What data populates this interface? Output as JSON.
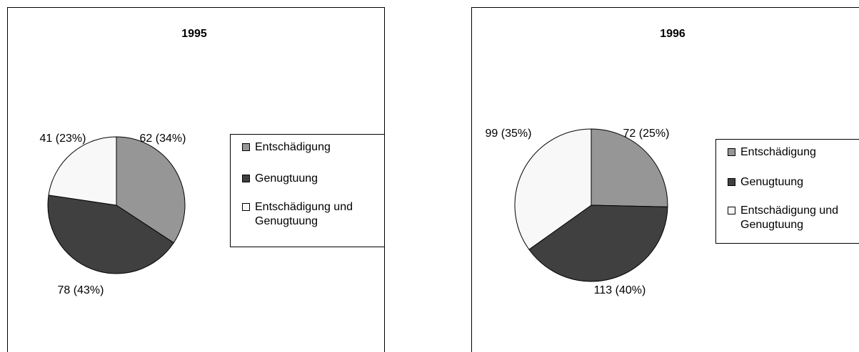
{
  "chart_data": [
    {
      "type": "pie",
      "title": "1995",
      "categories": [
        "Entschädigung",
        "Genugtuung",
        "Entschädigung und Genugtuung"
      ],
      "values": [
        62,
        78,
        41
      ],
      "value_labels": [
        "62 (34%)",
        "78 (43%)",
        "41 (23%)"
      ],
      "colors": [
        "#969696",
        "#404040",
        "#f8f8f8"
      ]
    },
    {
      "type": "pie",
      "title": "1996",
      "categories": [
        "Entschädigung",
        "Genugtuung",
        "Entschädigung und Genugtuung"
      ],
      "values": [
        72,
        113,
        99
      ],
      "value_labels": [
        "72 (25%)",
        "113 (40%)",
        "99 (35%)"
      ],
      "colors": [
        "#969696",
        "#404040",
        "#f8f8f8"
      ]
    }
  ]
}
